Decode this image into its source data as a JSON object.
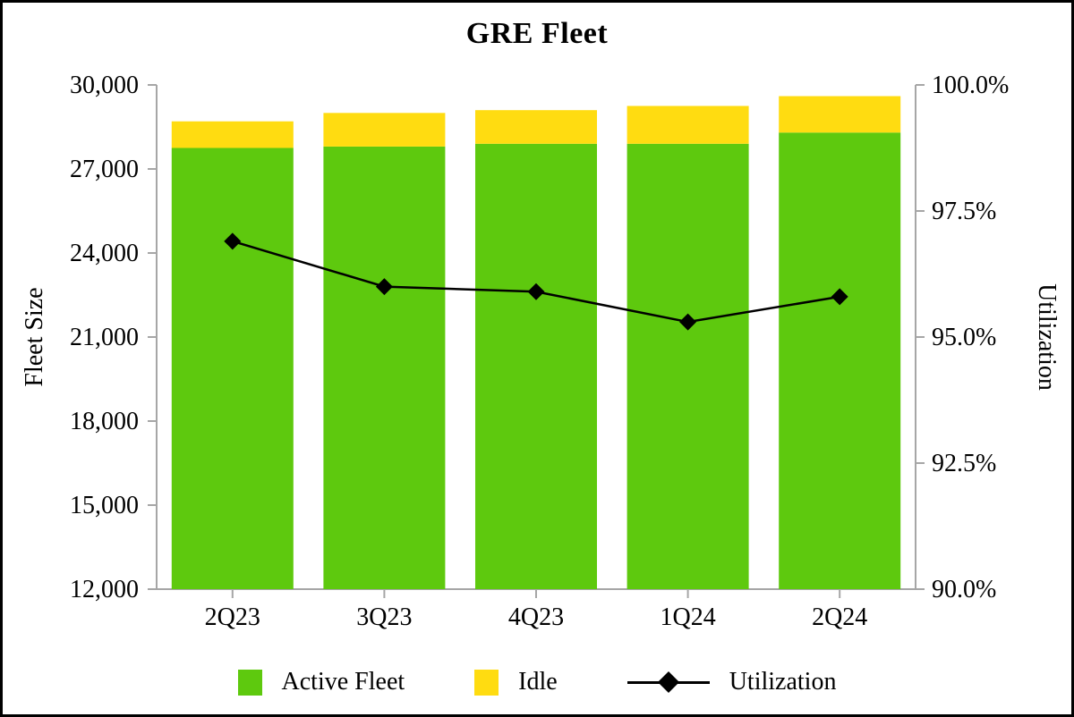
{
  "chart_data": {
    "type": "bar",
    "subtype": "stacked-bars-with-line-overlay",
    "title": "GRE Fleet",
    "categories": [
      "2Q23",
      "3Q23",
      "4Q23",
      "1Q24",
      "2Q24"
    ],
    "series": [
      {
        "name": "Active Fleet",
        "type": "bar",
        "stack": "fleet",
        "axis": "left",
        "color": "#5EC90E",
        "values": [
          27750,
          27800,
          27900,
          27900,
          28300
        ]
      },
      {
        "name": "Idle",
        "type": "bar",
        "stack": "fleet",
        "axis": "left",
        "color": "#FFDC11",
        "values": [
          950,
          1200,
          1200,
          1350,
          1300
        ]
      },
      {
        "name": "Utilization",
        "type": "line",
        "axis": "right",
        "marker": "diamond",
        "color": "#000000",
        "values": [
          96.9,
          96.0,
          95.9,
          95.3,
          95.8
        ]
      }
    ],
    "stack_totals": [
      28700,
      29000,
      29100,
      29250,
      29600
    ],
    "left_axis": {
      "label": "Fleet Size",
      "min": 12000,
      "max": 30000,
      "step": 3000,
      "tick_labels": [
        "30,000",
        "27,000",
        "24,000",
        "21,000",
        "18,000",
        "15,000",
        "12,000"
      ]
    },
    "right_axis": {
      "label": "Utilization",
      "min": 90,
      "max": 100,
      "step": 2.5,
      "tick_labels": [
        "100.0%",
        "97.5%",
        "95.0%",
        "92.5%",
        "90.0%"
      ]
    },
    "axis_color": "#A6A6A6",
    "text_color": "#000000",
    "grid": "off",
    "legend_position": "bottom",
    "legend": [
      "Active Fleet",
      "Idle",
      "Utilization"
    ]
  }
}
